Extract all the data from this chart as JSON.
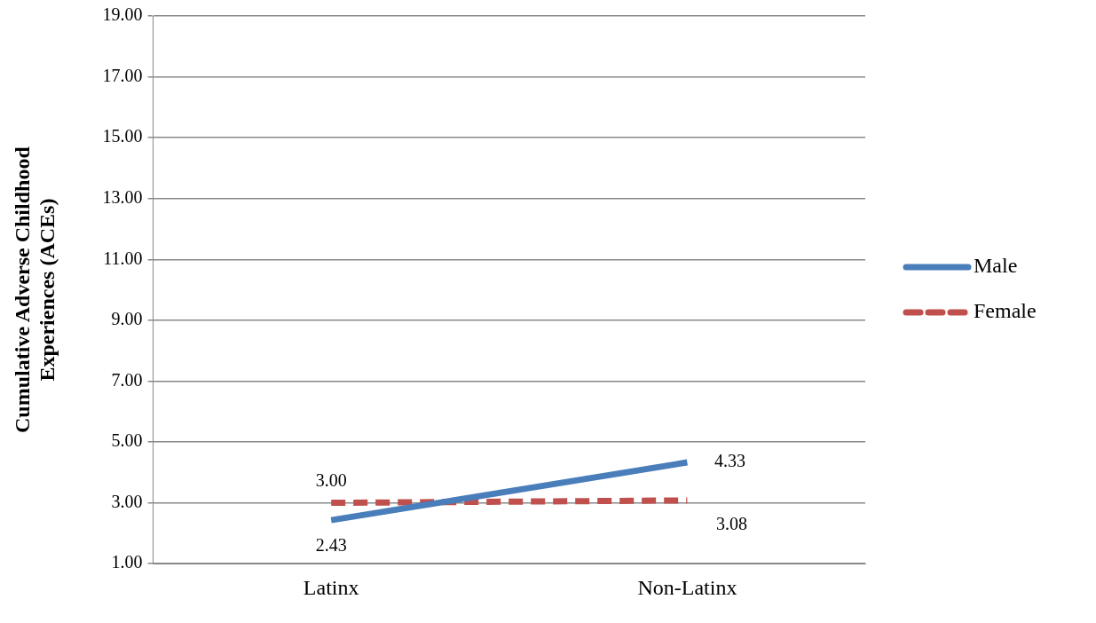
{
  "chart_data": {
    "type": "line",
    "ylabel": "Cumulative Adverse Childhood Experiences (ACEs)",
    "categories": [
      "Latinx",
      "Non-Latinx"
    ],
    "series": [
      {
        "name": "Male",
        "color": "#4a7ebb",
        "values": [
          2.43,
          4.33
        ],
        "value_labels": [
          "2.43",
          "4.33"
        ],
        "line_style": "solid"
      },
      {
        "name": "Female",
        "color": "#c0504d",
        "values": [
          3.0,
          3.08
        ],
        "value_labels": [
          "3.00",
          "3.08"
        ],
        "line_style": "dashed"
      }
    ],
    "ylim": [
      1,
      19
    ],
    "yticks": [
      {
        "value": 1,
        "label": "1.00"
      },
      {
        "value": 3,
        "label": "3.00"
      },
      {
        "value": 5,
        "label": "5.00"
      },
      {
        "value": 7,
        "label": "7.00"
      },
      {
        "value": 9,
        "label": "9.00"
      },
      {
        "value": 11,
        "label": "11.00"
      },
      {
        "value": 13,
        "label": "13.00"
      },
      {
        "value": 15,
        "label": "15.00"
      },
      {
        "value": 17,
        "label": "17.00"
      },
      {
        "value": 19,
        "label": "19.00"
      }
    ],
    "grid": "y",
    "legend": "right",
    "marker": "none"
  }
}
